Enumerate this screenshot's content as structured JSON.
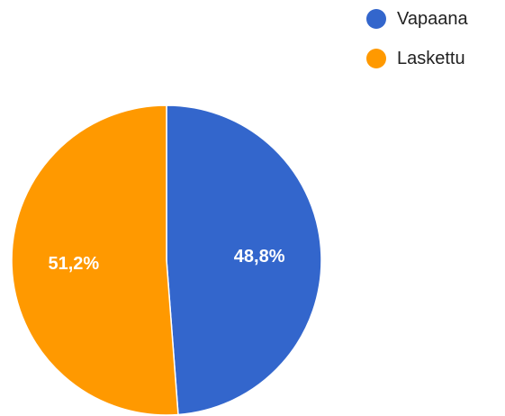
{
  "chart_data": {
    "type": "pie",
    "series": [
      {
        "name": "Vapaana",
        "value": 48.8,
        "label": "48,8%",
        "color": "#3366cc"
      },
      {
        "name": "Laskettu",
        "value": 51.2,
        "label": "51,2%",
        "color": "#ff9900"
      }
    ],
    "legend_position": "top-right"
  }
}
